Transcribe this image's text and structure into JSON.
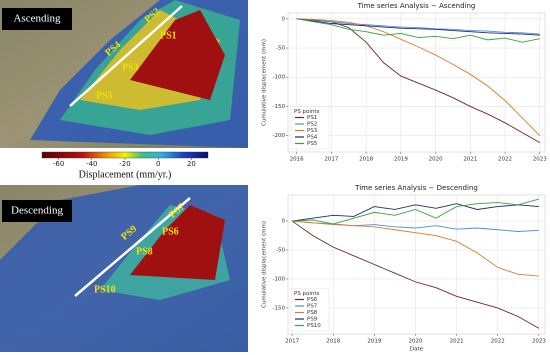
{
  "maps": [
    {
      "label": "Ascending",
      "points": [
        "PS1",
        "PS2",
        "PS3",
        "PS4",
        "PS5"
      ]
    },
    {
      "label": "Descending",
      "points": [
        "PS6",
        "PS7",
        "PS8",
        "PS9",
        "PS10"
      ]
    }
  ],
  "chart_data": [
    {
      "type": "line",
      "title": "Time series Analysis − Ascending",
      "ylabel": "Cumulative displacement (mm)",
      "x": [
        2016,
        2016.5,
        2017,
        2017.5,
        2018,
        2018.5,
        2019,
        2019.5,
        2020,
        2020.5,
        2021,
        2021.5,
        2022,
        2022.5,
        2023
      ],
      "xlim": [
        2015.75,
        2023.15
      ],
      "xticks": [
        2016,
        2017,
        2018,
        2019,
        2020,
        2021,
        2022,
        2023
      ],
      "ylim": [
        -228,
        10
      ],
      "yticks": [
        -200,
        -150,
        -100,
        -50,
        0
      ],
      "grid": true,
      "legend_title": "PS points",
      "legend": "lower left",
      "series": [
        {
          "name": "PS1",
          "color": "#6b2a2a",
          "values": [
            0,
            -2,
            -5,
            -15,
            -40,
            -75,
            -98,
            -110,
            -122,
            -135,
            -150,
            -163,
            -178,
            -195,
            -212
          ]
        },
        {
          "name": "PS2",
          "color": "#4f8fd8",
          "values": [
            0,
            -3,
            -5,
            -8,
            -10,
            -12,
            -14,
            -15,
            -17,
            -18,
            -20,
            -21,
            -23,
            -24,
            -26
          ]
        },
        {
          "name": "PS3",
          "color": "#e07b2a",
          "values": [
            0,
            -1,
            -3,
            -6,
            -12,
            -22,
            -35,
            -48,
            -62,
            -78,
            -95,
            -115,
            -140,
            -170,
            -200
          ]
        },
        {
          "name": "PS4",
          "color": "#1c2d6e",
          "values": [
            0,
            -4,
            -8,
            -10,
            -12,
            -14,
            -16,
            -17,
            -18,
            -20,
            -22,
            -24,
            -25,
            -26,
            -28
          ]
        },
        {
          "name": "PS5",
          "color": "#3aa03a",
          "values": [
            0,
            -5,
            -10,
            -18,
            -22,
            -28,
            -25,
            -32,
            -30,
            -34,
            -28,
            -36,
            -33,
            -40,
            -34
          ]
        }
      ]
    },
    {
      "type": "line",
      "title": "Time series Analysis − Descending",
      "ylabel": "Cumulative displacement (mm)",
      "xlabel": "Date",
      "x": [
        2017,
        2017.5,
        2018,
        2018.5,
        2019,
        2019.5,
        2020,
        2020.5,
        2021,
        2021.5,
        2022,
        2022.5,
        2023
      ],
      "xlim": [
        2016.9,
        2023.15
      ],
      "xticks": [
        2017,
        2018,
        2019,
        2020,
        2021,
        2022,
        2023
      ],
      "ylim": [
        -195,
        45
      ],
      "yticks": [
        -150,
        -100,
        -50,
        0
      ],
      "grid": true,
      "legend_title": "PS points",
      "legend": "lower left",
      "series": [
        {
          "name": "PS6",
          "color": "#6b2a2a",
          "values": [
            0,
            -25,
            -45,
            -60,
            -75,
            -90,
            -105,
            -115,
            -130,
            -140,
            -150,
            -165,
            -185
          ]
        },
        {
          "name": "PS7",
          "color": "#4f8fd8",
          "values": [
            0,
            -3,
            -5,
            -8,
            -6,
            -10,
            -12,
            -8,
            -14,
            -12,
            -15,
            -18,
            -16
          ]
        },
        {
          "name": "PS8",
          "color": "#e07b2a",
          "values": [
            0,
            -3,
            -6,
            -8,
            -10,
            -15,
            -20,
            -25,
            -35,
            -55,
            -80,
            -92,
            -95
          ]
        },
        {
          "name": "PS9",
          "color": "#1c2d6e",
          "values": [
            0,
            5,
            10,
            8,
            25,
            20,
            28,
            22,
            30,
            20,
            25,
            28,
            25
          ]
        },
        {
          "name": "PS10",
          "color": "#3aa03a",
          "values": [
            0,
            2,
            -5,
            5,
            15,
            10,
            20,
            5,
            25,
            30,
            32,
            28,
            38
          ]
        }
      ]
    },
    {
      "type": "colorbar",
      "label": "Displacement (mm/yr.)",
      "xlim": [
        -70,
        30
      ],
      "xticks": [
        -60,
        -40,
        -20,
        0,
        20
      ]
    }
  ]
}
